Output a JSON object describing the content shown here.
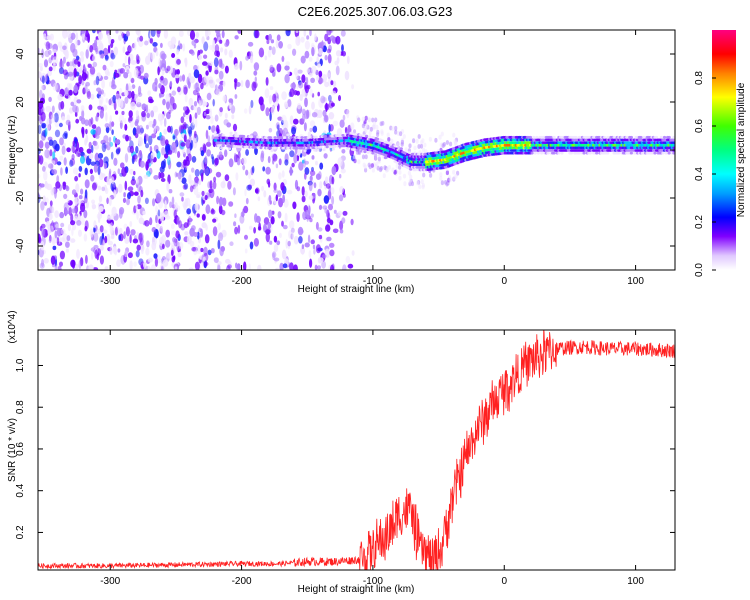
{
  "title": "C2E6.2025.307.06.03.G23",
  "chart_data": [
    {
      "type": "heatmap",
      "name": "spectrogram",
      "xlabel": "Height of straight line (km)",
      "ylabel": "Frequency (Hz)",
      "xlim": [
        -355,
        130
      ],
      "ylim": [
        -50,
        50
      ],
      "xticks": [
        -300,
        -200,
        -100,
        0,
        100
      ],
      "xtick_labels": [
        "-300",
        "-200",
        "-100",
        "0",
        "100"
      ],
      "yticks": [
        -40,
        -20,
        0,
        20,
        40
      ],
      "ytick_labels": [
        "-40",
        "-20",
        "0",
        "20",
        "40"
      ],
      "colorbar": {
        "label": "Normalized spectral amplitude",
        "range": [
          0,
          1
        ],
        "ticks": [
          0.0,
          0.2,
          0.4,
          0.6,
          0.8
        ],
        "tick_labels": [
          "0.0",
          "0.2",
          "0.4",
          "0.6",
          "0.8"
        ],
        "colors": [
          "#ffffff",
          "#d9b3ff",
          "#8000ff",
          "#0000ff",
          "#00c8ff",
          "#00ff80",
          "#80ff00",
          "#ffff00",
          "#ff8000",
          "#ff0000",
          "#ff0080"
        ]
      },
      "ridge": {
        "description": "dominant frequency track",
        "x": [
          -215,
          -180,
          -150,
          -120,
          -100,
          -85,
          -70,
          -60,
          -45,
          -30,
          -15,
          0,
          20,
          50,
          100,
          130
        ],
        "y": [
          4,
          3,
          3,
          4,
          2,
          -1,
          -5,
          -5,
          -4,
          -1,
          1,
          2,
          2,
          2,
          2,
          2
        ]
      }
    },
    {
      "type": "line",
      "name": "snr",
      "xlabel": "Height of straight line (km)",
      "ylabel": "SNR (10 * v/v)",
      "scale_note": "(x10^4)",
      "xlim": [
        -355,
        130
      ],
      "ylim": [
        0.02,
        1.17
      ],
      "xticks": [
        -300,
        -200,
        -100,
        0,
        100
      ],
      "xtick_labels": [
        "-300",
        "-200",
        "-100",
        "0",
        "100"
      ],
      "yticks": [
        0.2,
        0.4,
        0.6,
        0.8,
        1.0
      ],
      "ytick_labels": [
        "0.2",
        "0.4",
        "0.6",
        "0.8",
        "1.0"
      ],
      "series": [
        {
          "name": "SNR",
          "color": "#ff2020",
          "x": [
            -355,
            -300,
            -250,
            -200,
            -170,
            -150,
            -130,
            -110,
            -100,
            -90,
            -80,
            -72,
            -65,
            -55,
            -48,
            -40,
            -30,
            -20,
            -10,
            0,
            10,
            20,
            30,
            40,
            60,
            80,
            100,
            130
          ],
          "y": [
            0.04,
            0.04,
            0.045,
            0.05,
            0.05,
            0.06,
            0.06,
            0.07,
            0.12,
            0.18,
            0.28,
            0.32,
            0.14,
            0.06,
            0.12,
            0.35,
            0.55,
            0.7,
            0.8,
            0.88,
            0.96,
            1.02,
            1.06,
            1.08,
            1.09,
            1.08,
            1.08,
            1.07
          ]
        }
      ]
    }
  ]
}
